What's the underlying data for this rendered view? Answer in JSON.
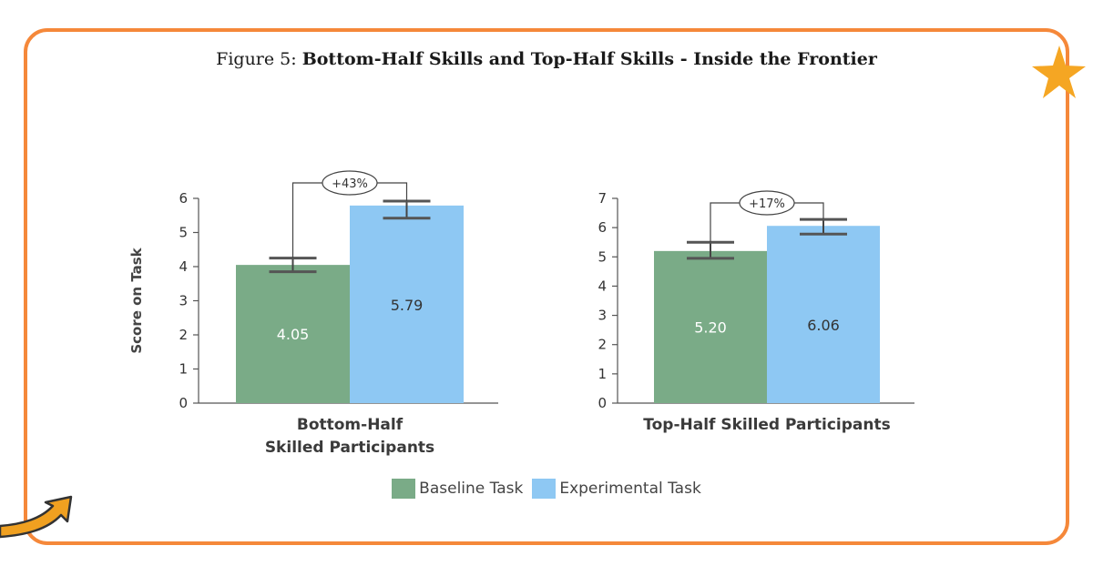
{
  "figure": {
    "lead": "Figure 5:",
    "title": "Bottom-Half Skills and Top-Half Skills - Inside the Frontier"
  },
  "colors": {
    "baseline": "#7aab87",
    "experimental": "#8ec8f3",
    "frame": "#f5883a",
    "star": "#f5a623",
    "arrow": "#f0a020"
  },
  "decorations": [
    "star-icon",
    "curved-arrow-icon"
  ],
  "chart_data": [
    {
      "type": "bar",
      "group": "Bottom-Half\nSkilled Participants",
      "ylabel": "Score on Task",
      "ylim": [
        0,
        6
      ],
      "yticks": [
        0,
        1,
        2,
        3,
        4,
        5,
        6
      ],
      "series": [
        {
          "name": "Baseline Task",
          "value": 4.05,
          "label": "4.05",
          "error": [
            3.85,
            4.25
          ]
        },
        {
          "name": "Experimental Task",
          "value": 5.79,
          "label": "5.79",
          "error": [
            5.42,
            5.92
          ]
        }
      ],
      "annotation": "+43%"
    },
    {
      "type": "bar",
      "group": "Top-Half Skilled Participants",
      "ylabel": "",
      "ylim": [
        0,
        7
      ],
      "yticks": [
        0,
        1,
        2,
        3,
        4,
        5,
        6,
        7
      ],
      "series": [
        {
          "name": "Baseline Task",
          "value": 5.2,
          "label": "5.20",
          "error": [
            4.95,
            5.5
          ]
        },
        {
          "name": "Experimental Task",
          "value": 6.06,
          "label": "6.06",
          "error": [
            5.78,
            6.28
          ]
        }
      ],
      "annotation": "+17%"
    }
  ],
  "legend": [
    {
      "label": "Baseline Task",
      "color": "#7aab87"
    },
    {
      "label": "Experimental Task",
      "color": "#8ec8f3"
    }
  ]
}
